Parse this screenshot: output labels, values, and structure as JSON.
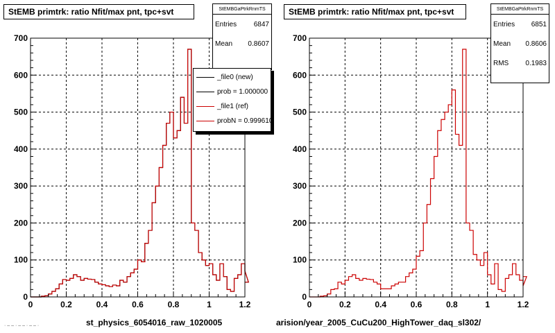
{
  "chart_data": [
    {
      "type": "histogram",
      "title": "StEMB primtrk: ratio Nfit/max pnt, tpc+svt",
      "xlim": [
        0,
        1.2
      ],
      "ylim": [
        0,
        700
      ],
      "xticks": [
        "0",
        "0.2",
        "0.4",
        "0.6",
        "0.8",
        "1",
        "1.2"
      ],
      "yticks": [
        "0",
        "100",
        "200",
        "300",
        "400",
        "500",
        "600",
        "700"
      ],
      "grid": true,
      "xlabel": "st_physics_6054016_raw_1020005",
      "stats": {
        "header": "StEMBGaPtrkRnmTS",
        "entries_label": "Entries",
        "entries": "6847",
        "mean_label": "Mean",
        "mean": "0.8607"
      },
      "legend": [
        "_file0 (new)",
        "prob = 1.000000",
        "_file1 (ref)",
        "probN = 0.999610"
      ],
      "bin_width": 0.02,
      "series": [
        {
          "color": "#000000",
          "values": [
            0,
            0,
            0,
            2,
            3,
            8,
            15,
            22,
            35,
            47,
            45,
            50,
            60,
            55,
            45,
            50,
            48,
            47,
            40,
            35,
            33,
            30,
            28,
            32,
            30,
            45,
            40,
            55,
            65,
            75,
            100,
            95,
            145,
            180,
            255,
            300,
            350,
            410,
            470,
            500,
            430,
            450,
            540,
            470,
            670,
            200,
            180,
            120,
            100,
            85,
            90,
            60,
            45,
            90,
            55,
            20,
            15,
            50,
            60,
            90,
            70,
            40
          ]
        },
        {
          "color": "#cc0000",
          "values": [
            0,
            0,
            0,
            2,
            3,
            8,
            15,
            22,
            35,
            47,
            45,
            50,
            60,
            55,
            45,
            50,
            48,
            47,
            40,
            35,
            33,
            30,
            28,
            32,
            30,
            45,
            40,
            55,
            65,
            75,
            100,
            95,
            145,
            180,
            255,
            300,
            350,
            410,
            470,
            500,
            430,
            450,
            540,
            470,
            670,
            200,
            180,
            120,
            100,
            85,
            90,
            60,
            45,
            90,
            55,
            20,
            15,
            50,
            60,
            90,
            70,
            40
          ]
        }
      ]
    },
    {
      "type": "histogram",
      "title": "StEMB primtrk: ratio Nfit/max pnt, tpc+svt",
      "xlim": [
        0,
        1.2
      ],
      "ylim": [
        0,
        700
      ],
      "xticks": [
        "0",
        "0.2",
        "0.4",
        "0.6",
        "0.8",
        "1",
        "1.2"
      ],
      "yticks": [
        "0",
        "100",
        "200",
        "300",
        "400",
        "500",
        "600",
        "700"
      ],
      "grid": true,
      "xlabel": "arision/year_2005_CuCu200_HighTower_daq_sl302/",
      "stats": {
        "header": "StEMBGaPtrkRnmTS",
        "entries_label": "Entries",
        "entries": "6851",
        "mean_label": "Mean",
        "mean": "0.8606",
        "rms_label": "RMS",
        "rms": "0.1983"
      },
      "bin_width": 0.02,
      "series": [
        {
          "color": "#cc0000",
          "values": [
            0,
            0,
            0,
            2,
            3,
            8,
            20,
            22,
            40,
            35,
            45,
            55,
            60,
            50,
            45,
            50,
            48,
            47,
            40,
            35,
            22,
            22,
            22,
            30,
            35,
            40,
            40,
            55,
            65,
            75,
            110,
            125,
            200,
            250,
            320,
            380,
            450,
            480,
            500,
            520,
            560,
            440,
            410,
            670,
            200,
            180,
            115,
            100,
            85,
            120,
            60,
            35,
            90,
            20,
            15,
            50,
            60,
            90,
            60,
            45,
            30,
            55
          ]
        }
      ]
    }
  ],
  "footer_text": "· – – · – – · – – ·"
}
